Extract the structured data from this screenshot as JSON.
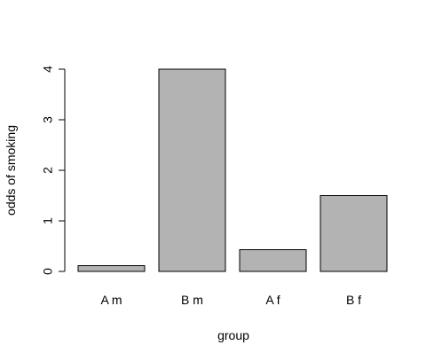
{
  "chart_data": {
    "type": "bar",
    "categories": [
      "A m",
      "B m",
      "A f",
      "B f"
    ],
    "values": [
      0.11,
      4.0,
      0.43,
      1.5
    ],
    "title": "",
    "xlabel": "group",
    "ylabel": "odds of smoking",
    "ylim": [
      0,
      4
    ],
    "yticks": [
      0,
      1,
      2,
      3,
      4
    ],
    "grid": false,
    "legend": "none",
    "bar_color": "#b3b3b3",
    "bar_border_color": "#000000"
  }
}
